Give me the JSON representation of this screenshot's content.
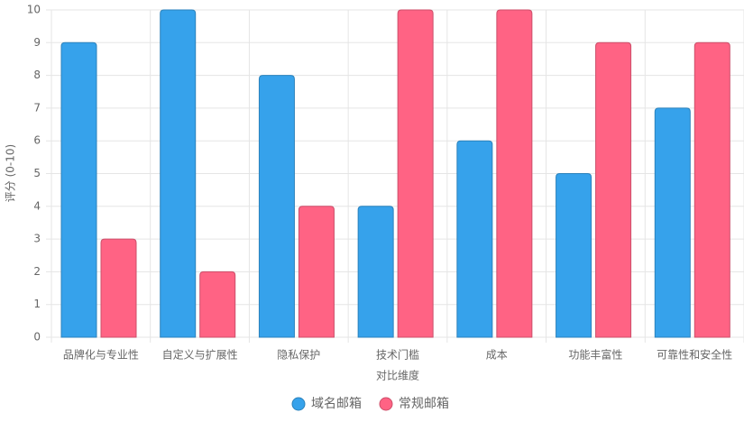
{
  "chart_data": {
    "type": "bar",
    "categories": [
      "品牌化与专业性",
      "自定义与扩展性",
      "隐私保护",
      "技术门槛",
      "成本",
      "功能丰富性",
      "可靠性和安全性"
    ],
    "series": [
      {
        "name": "域名邮箱",
        "color": "#36a2eb",
        "values": [
          9,
          10,
          8,
          4,
          6,
          5,
          7
        ]
      },
      {
        "name": "常规邮箱",
        "color": "#ff6384",
        "values": [
          3,
          2,
          4,
          10,
          10,
          9,
          9
        ]
      }
    ],
    "x_label": "对比维度",
    "y_label": "评分 (0-10)",
    "ylim": [
      0,
      10
    ],
    "yticks": [
      0,
      1,
      2,
      3,
      4,
      5,
      6,
      7,
      8,
      9,
      10
    ],
    "grid": true,
    "legend": "bottom"
  }
}
